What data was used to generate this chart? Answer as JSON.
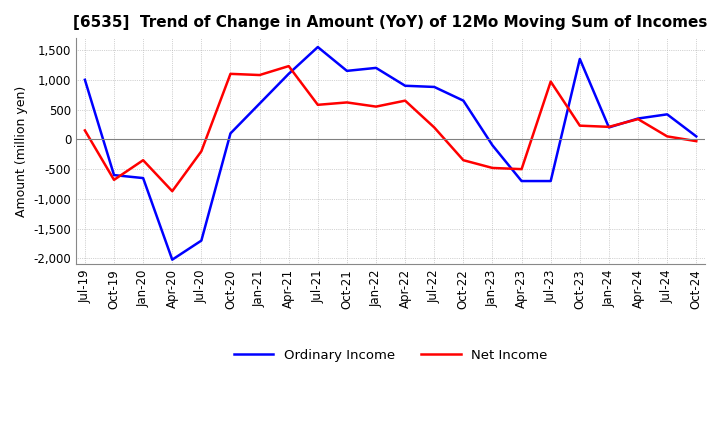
{
  "title": "[6535]  Trend of Change in Amount (YoY) of 12Mo Moving Sum of Incomes",
  "ylabel": "Amount (million yen)",
  "ylim": [
    -2100,
    1700
  ],
  "yticks": [
    -2000,
    -1500,
    -1000,
    -500,
    0,
    500,
    1000,
    1500
  ],
  "x_labels": [
    "Jul-19",
    "Oct-19",
    "Jan-20",
    "Apr-20",
    "Jul-20",
    "Oct-20",
    "Jan-21",
    "Apr-21",
    "Jul-21",
    "Oct-21",
    "Jan-22",
    "Apr-22",
    "Jul-22",
    "Oct-22",
    "Jan-23",
    "Apr-23",
    "Jul-23",
    "Oct-23",
    "Jan-24",
    "Apr-24",
    "Jul-24",
    "Oct-24"
  ],
  "ordinary_income": [
    1000,
    -600,
    -650,
    -2020,
    -1700,
    100,
    600,
    1100,
    1550,
    1150,
    1200,
    900,
    880,
    650,
    -100,
    -700,
    -700,
    1350,
    200,
    350,
    420,
    50
  ],
  "net_income": [
    150,
    -680,
    -350,
    -870,
    -200,
    1100,
    1080,
    1230,
    580,
    620,
    550,
    650,
    200,
    -350,
    -480,
    -500,
    970,
    230,
    210,
    340,
    50,
    -30
  ],
  "line_color_ordinary": "#0000FF",
  "line_color_net": "#FF0000",
  "background_color": "#FFFFFF",
  "grid_color": "#AAAAAA",
  "title_fontsize": 11,
  "label_fontsize": 9,
  "tick_fontsize": 8.5
}
